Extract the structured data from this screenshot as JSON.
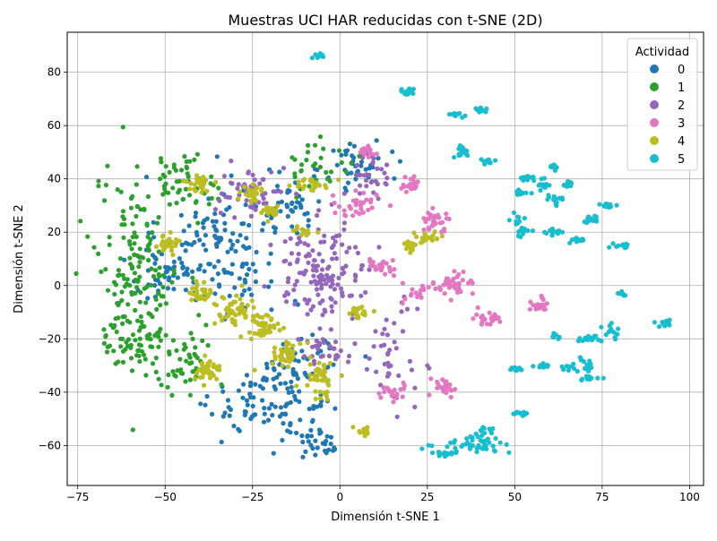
{
  "chart_data": {
    "type": "scatter",
    "title": "Muestras UCI HAR reducidas con t-SNE (2D)",
    "xlabel": "Dimensión t-SNE 1",
    "ylabel": "Dimensión t-SNE 2",
    "xlim": [
      -78,
      104
    ],
    "ylim": [
      -75,
      95
    ],
    "xticks": [
      -75,
      -50,
      -25,
      0,
      25,
      50,
      75,
      100
    ],
    "yticks": [
      -60,
      -40,
      -20,
      0,
      20,
      40,
      60,
      80
    ],
    "grid": true,
    "legend": {
      "title": "Actividad",
      "placement": "top-right"
    },
    "series": [
      {
        "name": "0",
        "color": "#1f77b4",
        "clusters": [
          [
            -35,
            15,
            14,
            22,
            130
          ],
          [
            -12,
            -35,
            10,
            18,
            90
          ],
          [
            -25,
            -45,
            10,
            10,
            50
          ],
          [
            5,
            45,
            8,
            8,
            40
          ],
          [
            -50,
            5,
            8,
            10,
            40
          ],
          [
            -15,
            30,
            8,
            8,
            40
          ],
          [
            -5,
            -58,
            6,
            6,
            30
          ]
        ]
      },
      {
        "name": "1",
        "color": "#2ca02c",
        "clusters": [
          [
            -58,
            5,
            10,
            30,
            160
          ],
          [
            -45,
            40,
            8,
            8,
            50
          ],
          [
            -45,
            -30,
            8,
            10,
            50
          ],
          [
            -5,
            45,
            8,
            8,
            30
          ],
          [
            -60,
            -20,
            6,
            8,
            40
          ]
        ]
      },
      {
        "name": "2",
        "color": "#9467bd",
        "clusters": [
          [
            -5,
            5,
            12,
            15,
            140
          ],
          [
            -25,
            35,
            8,
            8,
            50
          ],
          [
            8,
            40,
            6,
            8,
            30
          ],
          [
            15,
            -25,
            6,
            15,
            40
          ],
          [
            -5,
            -25,
            6,
            6,
            30
          ]
        ]
      },
      {
        "name": "3",
        "color": "#e377c2",
        "clusters": [
          [
            8,
            50,
            2,
            2,
            20
          ],
          [
            28,
            25,
            3,
            3,
            30
          ],
          [
            32,
            0,
            5,
            4,
            40
          ],
          [
            42,
            -12,
            3,
            3,
            25
          ],
          [
            30,
            -38,
            3,
            3,
            25
          ],
          [
            20,
            38,
            2,
            2,
            20
          ],
          [
            58,
            -7,
            3,
            2,
            20
          ],
          [
            15,
            -40,
            4,
            4,
            20
          ],
          [
            5,
            30,
            6,
            4,
            30
          ],
          [
            12,
            7,
            4,
            3,
            25
          ],
          [
            22,
            -3,
            4,
            3,
            15
          ]
        ]
      },
      {
        "name": "4",
        "color": "#bcbd22",
        "clusters": [
          [
            -38,
            -32,
            3,
            3,
            40
          ],
          [
            -30,
            -10,
            5,
            5,
            50
          ],
          [
            -22,
            -15,
            4,
            4,
            40
          ],
          [
            -15,
            -25,
            4,
            4,
            40
          ],
          [
            -5,
            -35,
            3,
            5,
            40
          ],
          [
            -50,
            15,
            3,
            3,
            30
          ],
          [
            -40,
            38,
            3,
            3,
            30
          ],
          [
            -25,
            35,
            3,
            3,
            25
          ],
          [
            -8,
            38,
            4,
            2,
            25
          ],
          [
            5,
            -10,
            3,
            2,
            20
          ],
          [
            7,
            -55,
            2,
            2,
            15
          ],
          [
            25,
            18,
            3,
            2,
            20
          ],
          [
            20,
            15,
            2,
            2,
            15
          ],
          [
            -40,
            -3,
            3,
            3,
            30
          ],
          [
            -20,
            28,
            3,
            3,
            20
          ],
          [
            -10,
            20,
            3,
            2,
            15
          ]
        ]
      },
      {
        "name": "5",
        "color": "#17becf",
        "clusters": [
          [
            -6,
            86,
            1,
            1,
            10
          ],
          [
            19,
            73,
            2,
            2,
            15
          ],
          [
            40,
            66,
            2,
            1,
            12
          ],
          [
            33,
            64,
            2,
            1,
            10
          ],
          [
            35,
            50,
            2,
            2,
            15
          ],
          [
            42,
            47,
            2,
            2,
            10
          ],
          [
            55,
            40,
            3,
            1,
            15
          ],
          [
            61,
            44,
            1,
            1,
            10
          ],
          [
            58,
            37,
            2,
            2,
            12
          ],
          [
            62,
            32,
            3,
            2,
            15
          ],
          [
            65,
            38,
            2,
            1,
            10
          ],
          [
            77,
            30,
            2,
            1,
            12
          ],
          [
            72,
            25,
            2,
            2,
            12
          ],
          [
            68,
            17,
            2,
            1,
            10
          ],
          [
            61,
            20,
            3,
            1,
            12
          ],
          [
            52,
            20,
            2,
            2,
            10
          ],
          [
            80,
            15,
            3,
            1,
            12
          ],
          [
            80,
            -3,
            1,
            1,
            8
          ],
          [
            78,
            -18,
            2,
            3,
            12
          ],
          [
            93,
            -14,
            2,
            1,
            12
          ],
          [
            72,
            -20,
            3,
            1,
            15
          ],
          [
            70,
            -30,
            3,
            3,
            15
          ],
          [
            65,
            -31,
            3,
            1,
            10
          ],
          [
            57,
            -30,
            3,
            1,
            10
          ],
          [
            50,
            -31,
            2,
            1,
            10
          ],
          [
            52,
            -48,
            3,
            1,
            12
          ],
          [
            42,
            -55,
            3,
            2,
            15
          ],
          [
            38,
            -60,
            8,
            2,
            40
          ],
          [
            30,
            -63,
            3,
            1,
            15
          ],
          [
            62,
            -19,
            2,
            1,
            8
          ],
          [
            50,
            25,
            2,
            2,
            10
          ],
          [
            52,
            35,
            2,
            1,
            10
          ],
          [
            70,
            -35,
            4,
            1,
            12
          ]
        ]
      }
    ]
  }
}
